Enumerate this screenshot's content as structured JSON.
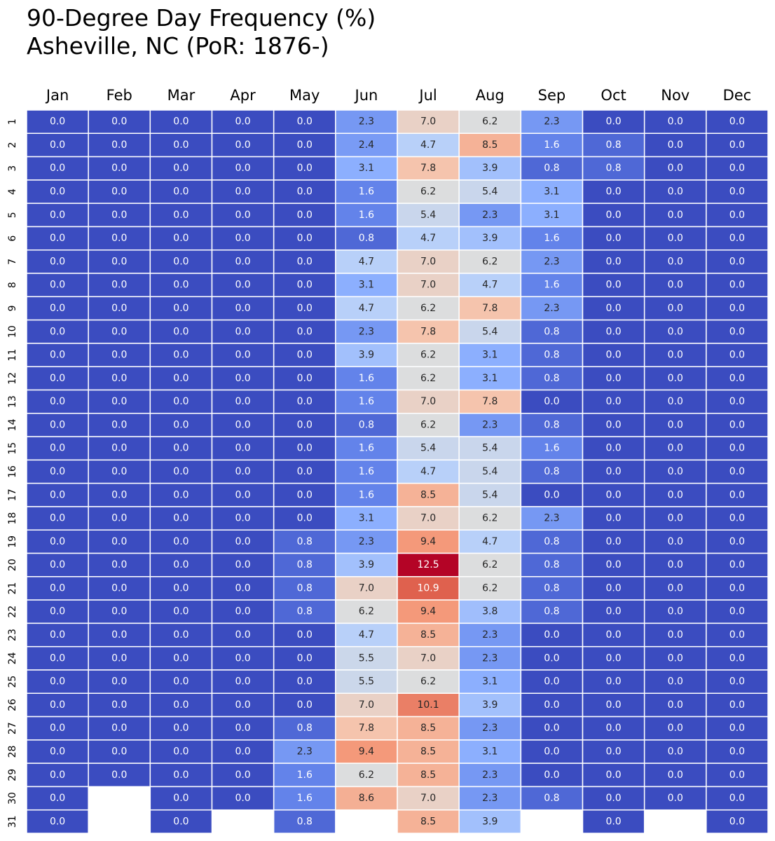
{
  "chart_data": {
    "type": "heatmap",
    "title": [
      "90-Degree Day Frequency (%)",
      "Asheville, NC (PoR: 1876-)"
    ],
    "months": [
      "Jan",
      "Feb",
      "Mar",
      "Apr",
      "May",
      "Jun",
      "Jul",
      "Aug",
      "Sep",
      "Oct",
      "Nov",
      "Dec"
    ],
    "days": [
      "1",
      "2",
      "3",
      "4",
      "5",
      "6",
      "7",
      "8",
      "9",
      "10",
      "11",
      "12",
      "13",
      "14",
      "15",
      "16",
      "17",
      "18",
      "19",
      "20",
      "21",
      "22",
      "23",
      "24",
      "25",
      "26",
      "27",
      "28",
      "29",
      "30",
      "31"
    ],
    "colormap": "coolwarm",
    "vmin": 0.0,
    "vmax": 12.5,
    "values": [
      [
        0.0,
        0.0,
        0.0,
        0.0,
        0.0,
        2.3,
        7.0,
        6.2,
        2.3,
        0.0,
        0.0,
        0.0
      ],
      [
        0.0,
        0.0,
        0.0,
        0.0,
        0.0,
        2.4,
        4.7,
        8.5,
        1.6,
        0.8,
        0.0,
        0.0
      ],
      [
        0.0,
        0.0,
        0.0,
        0.0,
        0.0,
        3.1,
        7.8,
        3.9,
        0.8,
        0.8,
        0.0,
        0.0
      ],
      [
        0.0,
        0.0,
        0.0,
        0.0,
        0.0,
        1.6,
        6.2,
        5.4,
        3.1,
        0.0,
        0.0,
        0.0
      ],
      [
        0.0,
        0.0,
        0.0,
        0.0,
        0.0,
        1.6,
        5.4,
        2.3,
        3.1,
        0.0,
        0.0,
        0.0
      ],
      [
        0.0,
        0.0,
        0.0,
        0.0,
        0.0,
        0.8,
        4.7,
        3.9,
        1.6,
        0.0,
        0.0,
        0.0
      ],
      [
        0.0,
        0.0,
        0.0,
        0.0,
        0.0,
        4.7,
        7.0,
        6.2,
        2.3,
        0.0,
        0.0,
        0.0
      ],
      [
        0.0,
        0.0,
        0.0,
        0.0,
        0.0,
        3.1,
        7.0,
        4.7,
        1.6,
        0.0,
        0.0,
        0.0
      ],
      [
        0.0,
        0.0,
        0.0,
        0.0,
        0.0,
        4.7,
        6.2,
        7.8,
        2.3,
        0.0,
        0.0,
        0.0
      ],
      [
        0.0,
        0.0,
        0.0,
        0.0,
        0.0,
        2.3,
        7.8,
        5.4,
        0.8,
        0.0,
        0.0,
        0.0
      ],
      [
        0.0,
        0.0,
        0.0,
        0.0,
        0.0,
        3.9,
        6.2,
        3.1,
        0.8,
        0.0,
        0.0,
        0.0
      ],
      [
        0.0,
        0.0,
        0.0,
        0.0,
        0.0,
        1.6,
        6.2,
        3.1,
        0.8,
        0.0,
        0.0,
        0.0
      ],
      [
        0.0,
        0.0,
        0.0,
        0.0,
        0.0,
        1.6,
        7.0,
        7.8,
        0.0,
        0.0,
        0.0,
        0.0
      ],
      [
        0.0,
        0.0,
        0.0,
        0.0,
        0.0,
        0.8,
        6.2,
        2.3,
        0.8,
        0.0,
        0.0,
        0.0
      ],
      [
        0.0,
        0.0,
        0.0,
        0.0,
        0.0,
        1.6,
        5.4,
        5.4,
        1.6,
        0.0,
        0.0,
        0.0
      ],
      [
        0.0,
        0.0,
        0.0,
        0.0,
        0.0,
        1.6,
        4.7,
        5.4,
        0.8,
        0.0,
        0.0,
        0.0
      ],
      [
        0.0,
        0.0,
        0.0,
        0.0,
        0.0,
        1.6,
        8.5,
        5.4,
        0.0,
        0.0,
        0.0,
        0.0
      ],
      [
        0.0,
        0.0,
        0.0,
        0.0,
        0.0,
        3.1,
        7.0,
        6.2,
        2.3,
        0.0,
        0.0,
        0.0
      ],
      [
        0.0,
        0.0,
        0.0,
        0.0,
        0.8,
        2.3,
        9.4,
        4.7,
        0.8,
        0.0,
        0.0,
        0.0
      ],
      [
        0.0,
        0.0,
        0.0,
        0.0,
        0.8,
        3.9,
        12.5,
        6.2,
        0.8,
        0.0,
        0.0,
        0.0
      ],
      [
        0.0,
        0.0,
        0.0,
        0.0,
        0.8,
        7.0,
        10.9,
        6.2,
        0.8,
        0.0,
        0.0,
        0.0
      ],
      [
        0.0,
        0.0,
        0.0,
        0.0,
        0.8,
        6.2,
        9.4,
        3.8,
        0.8,
        0.0,
        0.0,
        0.0
      ],
      [
        0.0,
        0.0,
        0.0,
        0.0,
        0.0,
        4.7,
        8.5,
        2.3,
        0.0,
        0.0,
        0.0,
        0.0
      ],
      [
        0.0,
        0.0,
        0.0,
        0.0,
        0.0,
        5.5,
        7.0,
        2.3,
        0.0,
        0.0,
        0.0,
        0.0
      ],
      [
        0.0,
        0.0,
        0.0,
        0.0,
        0.0,
        5.5,
        6.2,
        3.1,
        0.0,
        0.0,
        0.0,
        0.0
      ],
      [
        0.0,
        0.0,
        0.0,
        0.0,
        0.0,
        7.0,
        10.1,
        3.9,
        0.0,
        0.0,
        0.0,
        0.0
      ],
      [
        0.0,
        0.0,
        0.0,
        0.0,
        0.8,
        7.8,
        8.5,
        2.3,
        0.0,
        0.0,
        0.0,
        0.0
      ],
      [
        0.0,
        0.0,
        0.0,
        0.0,
        2.3,
        9.4,
        8.5,
        3.1,
        0.0,
        0.0,
        0.0,
        0.0
      ],
      [
        0.0,
        0.0,
        0.0,
        0.0,
        1.6,
        6.2,
        8.5,
        2.3,
        0.0,
        0.0,
        0.0,
        0.0
      ],
      [
        0.0,
        null,
        0.0,
        0.0,
        1.6,
        8.6,
        7.0,
        2.3,
        0.8,
        0.0,
        0.0,
        0.0
      ],
      [
        0.0,
        null,
        0.0,
        null,
        0.8,
        null,
        8.5,
        3.9,
        null,
        0.0,
        null,
        0.0
      ]
    ]
  }
}
